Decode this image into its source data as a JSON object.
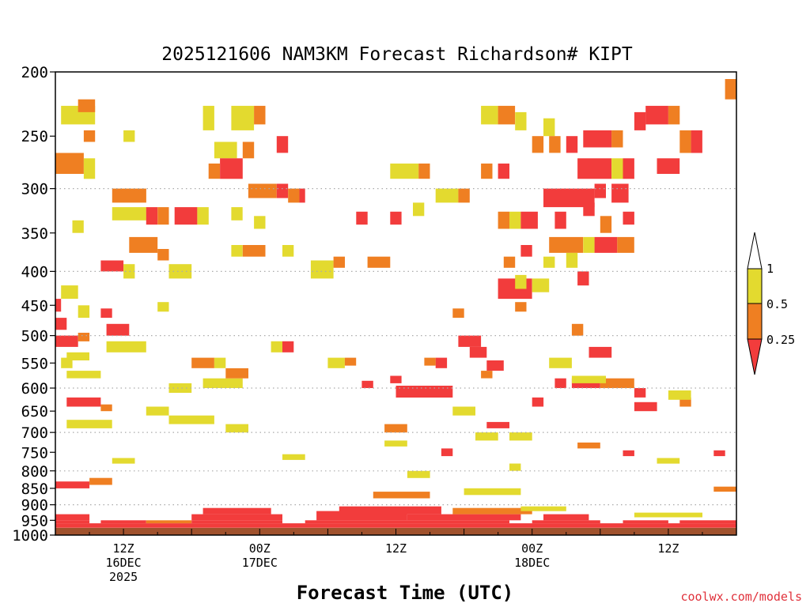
{
  "chart_data": {
    "type": "heatmap",
    "title": "2025121606 NAM3KM Forecast Richardson# KIPT",
    "xlabel": "Forecast Time (UTC)",
    "ylabel": "",
    "yscale": "log",
    "ylim": [
      1000,
      200
    ],
    "xlim_hours_from_init": [
      0,
      60
    ],
    "y_ticks": [
      200,
      250,
      300,
      350,
      400,
      450,
      500,
      550,
      600,
      650,
      700,
      750,
      800,
      850,
      900,
      950,
      1000
    ],
    "gridlines": [
      300,
      400,
      500,
      600,
      700,
      800,
      900
    ],
    "x_ticks": [
      {
        "hour": 6,
        "lines": [
          "12Z",
          "16DEC",
          "2025"
        ]
      },
      {
        "hour": 18,
        "lines": [
          "00Z",
          "17DEC"
        ]
      },
      {
        "hour": 30,
        "lines": [
          "12Z"
        ]
      },
      {
        "hour": 42,
        "lines": [
          "00Z",
          "18DEC"
        ]
      },
      {
        "hour": 54,
        "lines": [
          "12Z"
        ]
      }
    ],
    "colorbar": {
      "labels": [
        "1",
        "0.5",
        "0.25"
      ],
      "levels": [
        {
          "range": "1+",
          "color": "#ffffff"
        },
        {
          "range": "0.5-1",
          "color": "#e3da2f"
        },
        {
          "range": "0.25-0.5",
          "color": "#ef7f22"
        },
        {
          "range": "<0.25",
          "color": "#f23c3c"
        }
      ]
    },
    "ground_color": "#a0522d",
    "cells": [
      [
        1000,
        975,
        0,
        60,
        "ground"
      ],
      [
        975,
        960,
        0,
        60,
        "red"
      ],
      [
        960,
        950,
        0,
        3,
        "red"
      ],
      [
        960,
        950,
        4,
        8,
        "red"
      ],
      [
        960,
        950,
        8,
        12,
        "orange"
      ],
      [
        960,
        950,
        12,
        20,
        "red"
      ],
      [
        960,
        950,
        22,
        40,
        "red"
      ],
      [
        960,
        950,
        42,
        48,
        "red"
      ],
      [
        960,
        950,
        50,
        54,
        "red"
      ],
      [
        960,
        950,
        55,
        60,
        "red"
      ],
      [
        950,
        930,
        12,
        20,
        "red"
      ],
      [
        950,
        920,
        23,
        31,
        "red"
      ],
      [
        950,
        930,
        31,
        41,
        "red"
      ],
      [
        950,
        930,
        43,
        47,
        "red"
      ],
      [
        950,
        930,
        0,
        3,
        "red"
      ],
      [
        930,
        910,
        13,
        19,
        "red"
      ],
      [
        930,
        905,
        25,
        34,
        "red"
      ],
      [
        930,
        910,
        35,
        42,
        "orange"
      ],
      [
        920,
        905,
        41,
        45,
        "yellow"
      ],
      [
        940,
        925,
        51,
        57,
        "yellow"
      ],
      [
        850,
        830,
        0,
        3,
        "red"
      ],
      [
        840,
        820,
        3,
        5,
        "orange"
      ],
      [
        860,
        845,
        58,
        60,
        "orange"
      ],
      [
        880,
        860,
        28,
        33,
        "orange"
      ],
      [
        870,
        850,
        36,
        41,
        "yellow"
      ],
      [
        220,
        205,
        59,
        60,
        "orange"
      ],
      [
        240,
        225,
        0.5,
        3.5,
        "yellow"
      ],
      [
        230,
        220,
        2,
        3.5,
        "orange"
      ],
      [
        255,
        245,
        2.5,
        3.5,
        "orange"
      ],
      [
        255,
        245,
        6,
        7,
        "yellow"
      ],
      [
        285,
        265,
        0,
        2.5,
        "orange"
      ],
      [
        290,
        270,
        2.5,
        3.5,
        "yellow"
      ],
      [
        315,
        300,
        5,
        8,
        "orange"
      ],
      [
        335,
        320,
        5,
        8,
        "yellow"
      ],
      [
        340,
        320,
        8,
        9,
        "red"
      ],
      [
        340,
        320,
        9,
        10,
        "orange"
      ],
      [
        340,
        320,
        10.5,
        12.5,
        "red"
      ],
      [
        340,
        320,
        12.5,
        13.5,
        "yellow"
      ],
      [
        350,
        335,
        1.5,
        2.5,
        "yellow"
      ],
      [
        375,
        355,
        6.5,
        9,
        "orange"
      ],
      [
        385,
        370,
        9,
        10,
        "orange"
      ],
      [
        400,
        385,
        4,
        6,
        "red"
      ],
      [
        410,
        390,
        6,
        7,
        "yellow"
      ],
      [
        410,
        390,
        10,
        12,
        "yellow"
      ],
      [
        245,
        225,
        13,
        14,
        "yellow"
      ],
      [
        245,
        225,
        15.5,
        17.5,
        "yellow"
      ],
      [
        240,
        225,
        17.5,
        18.5,
        "orange"
      ],
      [
        270,
        255,
        14,
        16,
        "yellow"
      ],
      [
        290,
        275,
        13.5,
        14.5,
        "orange"
      ],
      [
        290,
        270,
        14.5,
        16.5,
        "red"
      ],
      [
        270,
        255,
        16.5,
        17.5,
        "orange"
      ],
      [
        265,
        250,
        19.5,
        20.5,
        "red"
      ],
      [
        310,
        295,
        17,
        19.5,
        "orange"
      ],
      [
        310,
        295,
        19.5,
        20.5,
        "red"
      ],
      [
        315,
        300,
        20.5,
        21.5,
        "orange"
      ],
      [
        315,
        300,
        21.5,
        22,
        "red"
      ],
      [
        335,
        320,
        15.5,
        16.5,
        "yellow"
      ],
      [
        345,
        330,
        17.5,
        18.5,
        "yellow"
      ],
      [
        380,
        365,
        15.5,
        16.5,
        "yellow"
      ],
      [
        380,
        365,
        16.5,
        18.5,
        "orange"
      ],
      [
        380,
        365,
        20,
        21,
        "yellow"
      ],
      [
        410,
        385,
        22.5,
        24.5,
        "yellow"
      ],
      [
        395,
        380,
        24.5,
        25.5,
        "orange"
      ],
      [
        340,
        325,
        26.5,
        27.5,
        "red"
      ],
      [
        340,
        325,
        29.5,
        30.5,
        "red"
      ],
      [
        395,
        380,
        27.5,
        29.5,
        "orange"
      ],
      [
        290,
        275,
        29.5,
        32,
        "yellow"
      ],
      [
        290,
        275,
        32,
        33,
        "orange"
      ],
      [
        315,
        300,
        33.5,
        35.5,
        "yellow"
      ],
      [
        315,
        300,
        35.5,
        36.5,
        "orange"
      ],
      [
        330,
        315,
        31.5,
        32.5,
        "yellow"
      ],
      [
        240,
        225,
        37.5,
        39,
        "yellow"
      ],
      [
        240,
        225,
        39,
        40.5,
        "orange"
      ],
      [
        245,
        230,
        40.5,
        41.5,
        "yellow"
      ],
      [
        290,
        275,
        37.5,
        38.5,
        "orange"
      ],
      [
        290,
        275,
        39,
        40,
        "red"
      ],
      [
        345,
        325,
        39,
        40,
        "orange"
      ],
      [
        345,
        325,
        40,
        41,
        "yellow"
      ],
      [
        380,
        365,
        41,
        42,
        "red"
      ],
      [
        395,
        380,
        39.5,
        40.5,
        "orange"
      ],
      [
        440,
        410,
        39,
        42,
        "red"
      ],
      [
        430,
        410,
        42,
        43.5,
        "yellow"
      ],
      [
        250,
        235,
        43,
        44,
        "yellow"
      ],
      [
        265,
        250,
        42,
        43,
        "orange"
      ],
      [
        265,
        250,
        43.5,
        44.5,
        "orange"
      ],
      [
        265,
        250,
        45,
        46,
        "red"
      ],
      [
        260,
        245,
        46.5,
        49,
        "red"
      ],
      [
        260,
        245,
        49,
        50,
        "orange"
      ],
      [
        245,
        230,
        51,
        52,
        "red"
      ],
      [
        240,
        225,
        52,
        54,
        "red"
      ],
      [
        240,
        225,
        54,
        55,
        "orange"
      ],
      [
        265,
        245,
        55,
        56,
        "orange"
      ],
      [
        265,
        245,
        56,
        57,
        "red"
      ],
      [
        290,
        270,
        46,
        49,
        "red"
      ],
      [
        290,
        270,
        49,
        50,
        "yellow"
      ],
      [
        290,
        270,
        50,
        51,
        "red"
      ],
      [
        285,
        270,
        53,
        55,
        "red"
      ],
      [
        320,
        300,
        43,
        47.5,
        "red"
      ],
      [
        330,
        315,
        46.5,
        47.5,
        "red"
      ],
      [
        345,
        325,
        41,
        42.5,
        "red"
      ],
      [
        345,
        325,
        44,
        45,
        "red"
      ],
      [
        310,
        295,
        47.5,
        48.5,
        "red"
      ],
      [
        315,
        295,
        49,
        50.5,
        "red"
      ],
      [
        340,
        325,
        50,
        51,
        "red"
      ],
      [
        375,
        355,
        43.5,
        46.5,
        "orange"
      ],
      [
        375,
        355,
        46.5,
        47.5,
        "yellow"
      ],
      [
        375,
        355,
        47.5,
        49.5,
        "red"
      ],
      [
        375,
        355,
        49.5,
        51,
        "orange"
      ],
      [
        350,
        330,
        48,
        49,
        "orange"
      ],
      [
        395,
        375,
        45,
        46,
        "yellow"
      ],
      [
        420,
        400,
        46,
        47,
        "red"
      ],
      [
        395,
        380,
        43,
        44,
        "yellow"
      ],
      [
        425,
        405,
        40.5,
        41.5,
        "yellow"
      ],
      [
        460,
        440,
        0,
        0.5,
        "red"
      ],
      [
        440,
        420,
        0.5,
        2,
        "yellow"
      ],
      [
        470,
        450,
        2,
        3,
        "yellow"
      ],
      [
        490,
        470,
        0,
        1,
        "red"
      ],
      [
        470,
        455,
        4,
        5,
        "red"
      ],
      [
        500,
        480,
        4.5,
        6.5,
        "red"
      ],
      [
        520,
        500,
        0,
        2,
        "red"
      ],
      [
        510,
        495,
        2,
        3,
        "orange"
      ],
      [
        560,
        540,
        0.5,
        1.5,
        "yellow"
      ],
      [
        530,
        510,
        4.5,
        8,
        "yellow"
      ],
      [
        560,
        540,
        12,
        14,
        "orange"
      ],
      [
        560,
        540,
        14,
        15,
        "yellow"
      ],
      [
        600,
        580,
        13,
        16.5,
        "yellow"
      ],
      [
        580,
        560,
        15,
        17,
        "orange"
      ],
      [
        530,
        510,
        19,
        20,
        "yellow"
      ],
      [
        530,
        510,
        20,
        21,
        "red"
      ],
      [
        560,
        540,
        24,
        25.5,
        "yellow"
      ],
      [
        555,
        540,
        25.5,
        26.5,
        "orange"
      ],
      [
        590,
        575,
        29.5,
        30.5,
        "red"
      ],
      [
        620,
        595,
        30,
        35,
        "red"
      ],
      [
        560,
        540,
        33.5,
        34.5,
        "red"
      ],
      [
        555,
        540,
        32.5,
        33.5,
        "orange"
      ],
      [
        520,
        500,
        35.5,
        37.5,
        "red"
      ],
      [
        540,
        520,
        36.5,
        38,
        "red"
      ],
      [
        565,
        545,
        38,
        39.5,
        "red"
      ],
      [
        580,
        565,
        37.5,
        38.5,
        "orange"
      ],
      [
        470,
        455,
        35,
        36,
        "orange"
      ],
      [
        460,
        445,
        40.5,
        41.5,
        "orange"
      ],
      [
        560,
        540,
        43.5,
        45.5,
        "yellow"
      ],
      [
        540,
        520,
        47,
        49,
        "red"
      ],
      [
        500,
        480,
        45.5,
        46.5,
        "orange"
      ],
      [
        600,
        580,
        45.5,
        48,
        "red"
      ],
      [
        600,
        580,
        48,
        51,
        "orange"
      ],
      [
        620,
        600,
        51,
        52,
        "red"
      ],
      [
        650,
        630,
        51,
        53,
        "red"
      ],
      [
        640,
        620,
        55,
        56,
        "orange"
      ],
      [
        660,
        640,
        35,
        37,
        "yellow"
      ],
      [
        640,
        620,
        42,
        43,
        "red"
      ],
      [
        600,
        580,
        44,
        45,
        "red"
      ],
      [
        640,
        620,
        1,
        4,
        "red"
      ],
      [
        650,
        635,
        4,
        5,
        "orange"
      ],
      [
        680,
        660,
        10,
        14,
        "yellow"
      ],
      [
        720,
        700,
        37,
        39,
        "yellow"
      ],
      [
        740,
        725,
        46,
        48,
        "orange"
      ],
      [
        760,
        745,
        50,
        51,
        "red"
      ],
      [
        760,
        745,
        58,
        59,
        "red"
      ],
      [
        660,
        640,
        8,
        10,
        "yellow"
      ],
      [
        690,
        670,
        1,
        5,
        "yellow"
      ],
      [
        700,
        680,
        15,
        17,
        "yellow"
      ],
      [
        700,
        680,
        29,
        31,
        "orange"
      ],
      [
        690,
        675,
        38,
        40,
        "red"
      ],
      [
        780,
        765,
        5,
        7,
        "yellow"
      ],
      [
        770,
        755,
        20,
        22,
        "yellow"
      ],
      [
        735,
        720,
        29,
        31,
        "yellow"
      ],
      [
        760,
        740,
        34,
        35,
        "red"
      ],
      [
        720,
        700,
        40,
        42,
        "yellow"
      ],
      [
        820,
        800,
        31,
        33,
        "yellow"
      ],
      [
        800,
        780,
        40,
        41,
        "yellow"
      ],
      [
        780,
        765,
        53,
        55,
        "yellow"
      ],
      [
        610,
        590,
        10,
        12,
        "yellow"
      ],
      [
        600,
        585,
        27,
        28,
        "red"
      ],
      [
        590,
        575,
        45.5,
        48.5,
        "yellow"
      ],
      [
        580,
        565,
        1,
        4,
        "yellow"
      ],
      [
        625,
        605,
        54,
        56,
        "yellow"
      ],
      [
        460,
        445,
        9,
        10,
        "yellow"
      ],
      [
        545,
        530,
        1,
        3,
        "yellow"
      ]
    ]
  }
}
